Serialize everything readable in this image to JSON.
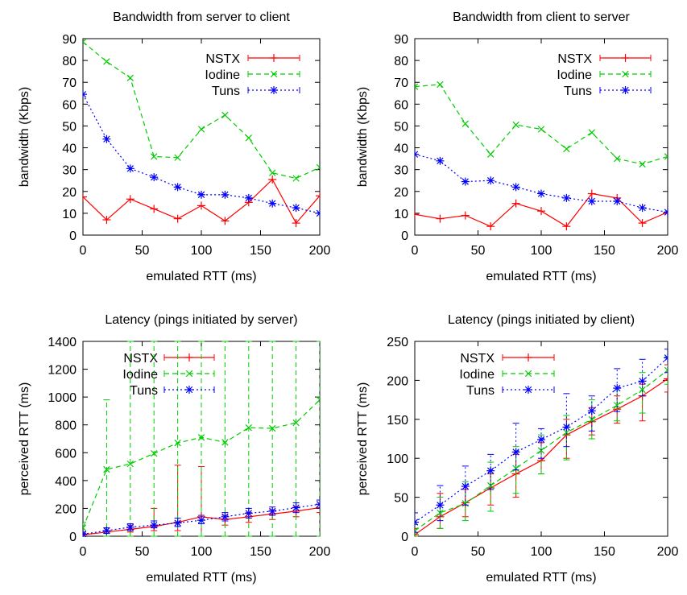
{
  "chart_data": [
    {
      "type": "line",
      "title": "Bandwidth from server to client",
      "xlabel": "emulated RTT (ms)",
      "ylabel": "bandwidth (Kbps)",
      "xlim": [
        0,
        200
      ],
      "ylim": [
        0,
        90
      ],
      "xticks": [
        0,
        50,
        100,
        150,
        200
      ],
      "yticks": [
        0,
        10,
        20,
        30,
        40,
        50,
        60,
        70,
        80,
        90
      ],
      "legend_position": "top-right",
      "series": [
        {
          "name": "NSTX",
          "color": "#ff0000",
          "marker": "plus",
          "dash": "solid",
          "x": [
            0,
            20,
            40,
            60,
            80,
            100,
            120,
            140,
            160,
            180,
            200
          ],
          "y": [
            17.5,
            7,
            16.5,
            12,
            7.5,
            13.5,
            6.5,
            15,
            25.5,
            5.5,
            18
          ]
        },
        {
          "name": "Iodine",
          "color": "#00cc00",
          "marker": "x",
          "dash": "dashed",
          "x": [
            0,
            20,
            40,
            60,
            80,
            100,
            120,
            140,
            160,
            180,
            200
          ],
          "y": [
            88.5,
            79.5,
            72,
            36,
            35.5,
            48.5,
            55,
            44.5,
            28.5,
            26,
            31
          ]
        },
        {
          "name": "Tuns",
          "color": "#0000ff",
          "marker": "star",
          "dash": "dotted",
          "x": [
            0,
            20,
            40,
            60,
            80,
            100,
            120,
            140,
            160,
            180,
            200
          ],
          "y": [
            64.5,
            44,
            30.5,
            26.5,
            22,
            18.5,
            18.5,
            17,
            14.5,
            12.5,
            10
          ]
        }
      ]
    },
    {
      "type": "line",
      "title": "Bandwidth from client to server",
      "xlabel": "emulated RTT (ms)",
      "ylabel": "bandwidth (Kbps)",
      "xlim": [
        0,
        200
      ],
      "ylim": [
        0,
        90
      ],
      "xticks": [
        0,
        50,
        100,
        150,
        200
      ],
      "yticks": [
        0,
        10,
        20,
        30,
        40,
        50,
        60,
        70,
        80,
        90
      ],
      "legend_position": "top-right",
      "series": [
        {
          "name": "NSTX",
          "color": "#ff0000",
          "marker": "plus",
          "dash": "solid",
          "x": [
            0,
            20,
            40,
            60,
            80,
            100,
            120,
            140,
            160,
            180,
            200
          ],
          "y": [
            9.5,
            7.5,
            9,
            4,
            14.5,
            11,
            4,
            19,
            17,
            5.5,
            10.5
          ]
        },
        {
          "name": "Iodine",
          "color": "#00cc00",
          "marker": "x",
          "dash": "dashed",
          "x": [
            0,
            20,
            40,
            60,
            80,
            100,
            120,
            140,
            160,
            180,
            200
          ],
          "y": [
            68,
            69,
            51,
            37,
            50.5,
            48.5,
            39.5,
            47,
            35,
            32.5,
            36
          ]
        },
        {
          "name": "Tuns",
          "color": "#0000ff",
          "marker": "star",
          "dash": "dotted",
          "x": [
            0,
            20,
            40,
            60,
            80,
            100,
            120,
            140,
            160,
            180,
            200
          ],
          "y": [
            37,
            34,
            24.5,
            25,
            22,
            19,
            17,
            15.5,
            15.5,
            12.5,
            10.5
          ]
        }
      ]
    },
    {
      "type": "line",
      "title": "Latency (pings initiated by server)",
      "xlabel": "emulated RTT (ms)",
      "ylabel": "perceived RTT (ms)",
      "xlim": [
        0,
        200
      ],
      "ylim": [
        0,
        1400
      ],
      "xticks": [
        0,
        50,
        100,
        150,
        200
      ],
      "yticks": [
        0,
        200,
        400,
        600,
        800,
        1000,
        1200,
        1400
      ],
      "legend_position": "top-left",
      "error_bars": true,
      "series": [
        {
          "name": "NSTX",
          "color": "#ff0000",
          "marker": "plus",
          "dash": "solid",
          "x": [
            0,
            20,
            40,
            60,
            80,
            100,
            120,
            140,
            160,
            180,
            200
          ],
          "y": [
            10,
            30,
            50,
            70,
            100,
            140,
            120,
            140,
            160,
            180,
            205
          ],
          "err_low": [
            0,
            20,
            30,
            40,
            40,
            0,
            80,
            100,
            120,
            140,
            170
          ],
          "err_high": [
            20,
            60,
            80,
            200,
            510,
            500,
            150,
            170,
            190,
            210,
            230
          ]
        },
        {
          "name": "Iodine",
          "color": "#00cc00",
          "marker": "x",
          "dash": "dashed",
          "x": [
            0,
            20,
            40,
            60,
            80,
            100,
            120,
            140,
            160,
            180,
            200
          ],
          "y": [
            60,
            480,
            520,
            595,
            670,
            710,
            675,
            780,
            775,
            815,
            980
          ],
          "err_low": [
            0,
            0,
            0,
            0,
            0,
            0,
            0,
            0,
            0,
            0,
            0
          ],
          "err_high": [
            100,
            980,
            1400,
            1400,
            1400,
            1400,
            1400,
            1400,
            1400,
            1400,
            1400
          ]
        },
        {
          "name": "Tuns",
          "color": "#0000ff",
          "marker": "star",
          "dash": "dotted",
          "x": [
            0,
            20,
            40,
            60,
            80,
            100,
            120,
            140,
            160,
            180,
            200
          ],
          "y": [
            15,
            40,
            65,
            80,
            95,
            115,
            140,
            165,
            180,
            205,
            230
          ],
          "err_low": [
            0,
            20,
            40,
            60,
            70,
            90,
            110,
            130,
            150,
            170,
            200
          ],
          "err_high": [
            30,
            60,
            90,
            110,
            130,
            150,
            170,
            200,
            210,
            240,
            260
          ]
        }
      ]
    },
    {
      "type": "line",
      "title": "Latency (pings initiated by client)",
      "xlabel": "emulated RTT (ms)",
      "ylabel": "perceived RTT (ms)",
      "xlim": [
        0,
        200
      ],
      "ylim": [
        0,
        250
      ],
      "xticks": [
        0,
        50,
        100,
        150,
        200
      ],
      "yticks": [
        0,
        50,
        100,
        150,
        200,
        250
      ],
      "legend_position": "top-left",
      "error_bars": true,
      "series": [
        {
          "name": "NSTX",
          "color": "#ff0000",
          "marker": "plus",
          "dash": "solid",
          "x": [
            0,
            20,
            40,
            60,
            80,
            100,
            120,
            140,
            160,
            180,
            200
          ],
          "y": [
            2,
            25,
            43,
            62,
            80,
            97,
            130,
            147,
            163,
            180,
            202
          ],
          "err_low": [
            0,
            10,
            25,
            40,
            50,
            80,
            100,
            130,
            145,
            148,
            185
          ],
          "err_high": [
            10,
            55,
            60,
            80,
            105,
            120,
            150,
            165,
            180,
            195,
            220
          ]
        },
        {
          "name": "Iodine",
          "color": "#00cc00",
          "marker": "x",
          "dash": "dashed",
          "x": [
            0,
            20,
            40,
            60,
            80,
            100,
            120,
            140,
            160,
            180,
            200
          ],
          "y": [
            7,
            30,
            42,
            65,
            87,
            110,
            133,
            150,
            168,
            188,
            213
          ],
          "err_low": [
            0,
            10,
            20,
            32,
            55,
            80,
            98,
            125,
            148,
            158,
            195
          ],
          "err_high": [
            15,
            50,
            70,
            95,
            115,
            130,
            155,
            175,
            190,
            210,
            230
          ]
        },
        {
          "name": "Tuns",
          "color": "#0000ff",
          "marker": "star",
          "dash": "dotted",
          "x": [
            0,
            20,
            40,
            60,
            80,
            100,
            120,
            140,
            160,
            180,
            200
          ],
          "y": [
            18,
            40,
            64,
            84,
            108,
            124,
            140,
            161,
            190,
            199,
            229
          ],
          "err_low": [
            5,
            20,
            40,
            60,
            85,
            100,
            115,
            135,
            160,
            180,
            210
          ],
          "err_high": [
            30,
            65,
            90,
            105,
            145,
            138,
            183,
            180,
            215,
            227,
            240
          ]
        }
      ]
    }
  ]
}
